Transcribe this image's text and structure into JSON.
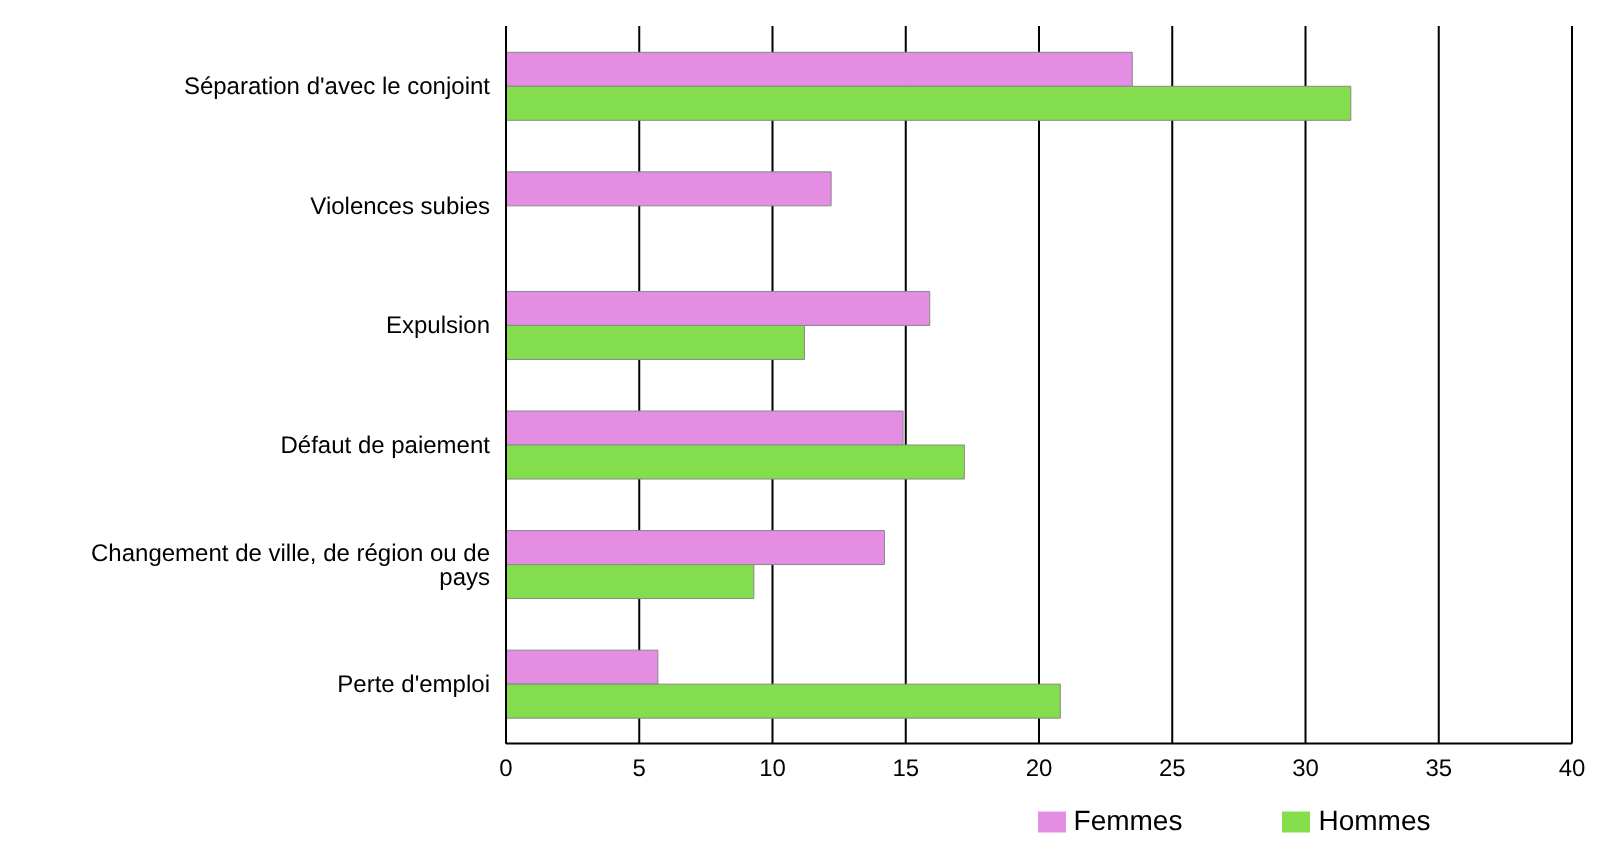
{
  "chart_data": {
    "type": "bar",
    "orientation": "horizontal",
    "categories": [
      "Séparation d'avec le conjoint",
      "Violences subies",
      "Expulsion",
      "Défaut de paiement",
      "Changement de ville, de région ou de pays",
      "Perte d'emploi"
    ],
    "series": [
      {
        "name": "Femmes",
        "color": "#e38de3",
        "values": [
          23.5,
          12.2,
          15.9,
          14.9,
          14.2,
          5.7
        ]
      },
      {
        "name": "Hommes",
        "color": "#84dd4c",
        "values": [
          31.7,
          null,
          11.2,
          17.2,
          9.3,
          20.8
        ]
      }
    ],
    "xlim": [
      0,
      40
    ],
    "xticks": [
      0,
      5,
      10,
      15,
      20,
      25,
      30,
      35,
      40
    ],
    "grid": "x",
    "legend": "bottom"
  }
}
